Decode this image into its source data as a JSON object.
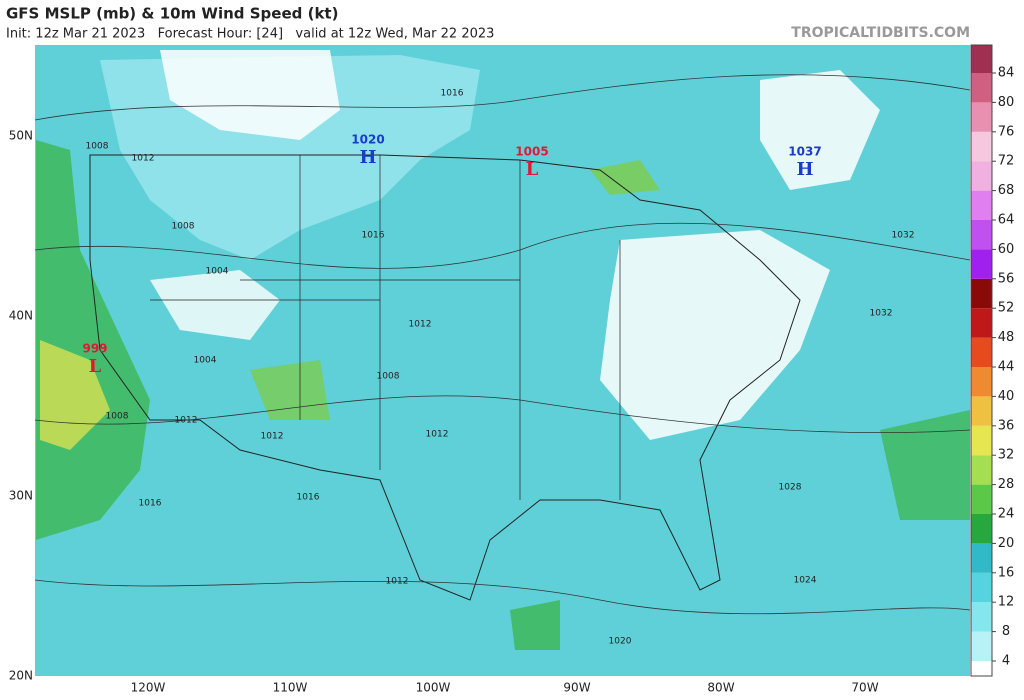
{
  "header": {
    "title": "GFS MSLP (mb) & 10m Wind Speed (kt)",
    "subtitle": "Init: 12z Mar 21 2023   Forecast Hour: [24]   valid at 12z Wed, Mar 22 2023",
    "site": "TROPICALTIDBITS.COM"
  },
  "map": {
    "lat_labels": [
      "50N",
      "40N",
      "30N",
      "20N"
    ],
    "lon_labels": [
      "120W",
      "110W",
      "100W",
      "90W",
      "80W",
      "70W"
    ],
    "centers": [
      {
        "type": "H",
        "pressure": "1020"
      },
      {
        "type": "L",
        "pressure": "1005"
      },
      {
        "type": "L",
        "pressure": "999"
      },
      {
        "type": "H",
        "pressure": "1037"
      }
    ],
    "isobar_labels": [
      "1016",
      "1008",
      "1012",
      "1008",
      "1016",
      "1004",
      "1012",
      "1004",
      "1008",
      "1008",
      "1012",
      "1012",
      "1012",
      "1016",
      "1016",
      "1028",
      "1012",
      "1024",
      "1020",
      "1032",
      "1032"
    ]
  },
  "colorbar": {
    "ticks": [
      4,
      8,
      12,
      16,
      20,
      24,
      28,
      32,
      36,
      40,
      44,
      48,
      52,
      56,
      60,
      64,
      68,
      72,
      76,
      80,
      84
    ],
    "colors": [
      "#ffffff",
      "#b8f2f7",
      "#86e6ee",
      "#55d3df",
      "#2fb9c9",
      "#27a83c",
      "#5cc84a",
      "#a6de52",
      "#e6e650",
      "#f0c040",
      "#f08a30",
      "#e84a20",
      "#c01818",
      "#8a0a0a",
      "#a020f0",
      "#c050f0",
      "#e080f0",
      "#f0b0e0",
      "#f5c8e0",
      "#e890b0",
      "#d06080",
      "#a03050"
    ]
  }
}
